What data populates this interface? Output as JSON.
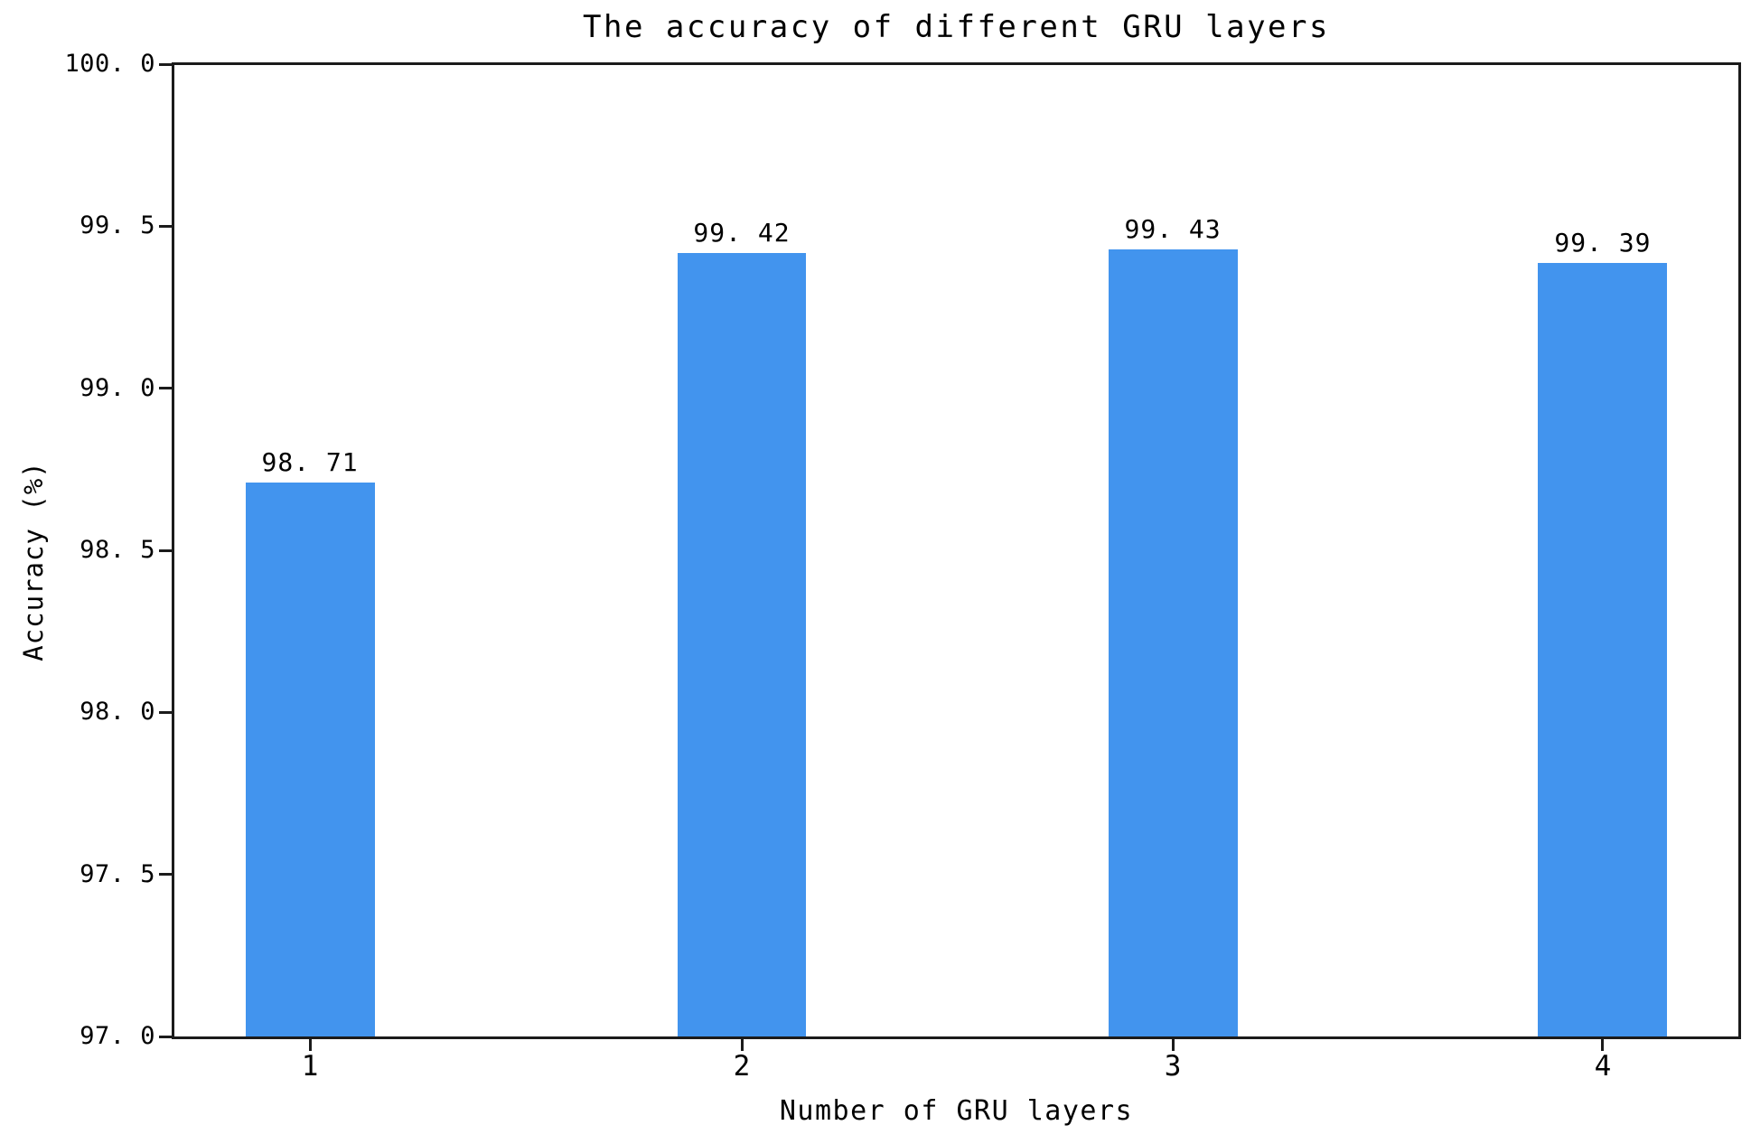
{
  "chart_data": {
    "type": "bar",
    "title": "The accuracy of different GRU layers",
    "xlabel": "Number of GRU layers",
    "ylabel": "Accuracy (%)",
    "categories": [
      "1",
      "2",
      "3",
      "4"
    ],
    "values": [
      98.71,
      99.42,
      99.43,
      99.39
    ],
    "bar_value_labels": [
      "98. 71",
      "99. 42",
      "99. 43",
      "99. 39"
    ],
    "ylim": [
      97.0,
      100.0
    ],
    "yticks": [
      100.0,
      99.5,
      99.0,
      98.5,
      98.0,
      97.5,
      97.0
    ],
    "ytick_labels": [
      "100. 0",
      "99. 5",
      "99. 0",
      "98. 5",
      "98. 0",
      "97. 5",
      "97. 0"
    ],
    "grid": false,
    "legend": "none",
    "bar_color": "#4294EE",
    "axis_color": "#1b1b1b",
    "text_color": "#000000"
  }
}
